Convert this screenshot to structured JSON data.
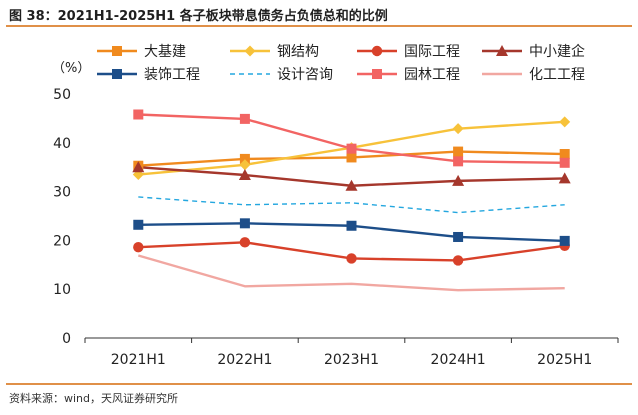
{
  "header": {
    "title": "图 38：2021H1-2025H1 各子板块带息债务占负债总和的比例"
  },
  "footer": {
    "source": "资料来源：wind，天风证券研究所"
  },
  "chart_data": {
    "type": "line",
    "ylabel": "（%）",
    "ylim": [
      0,
      50
    ],
    "yticks": [
      0,
      10,
      20,
      30,
      40,
      50
    ],
    "categories": [
      "2021H1",
      "2022H1",
      "2023H1",
      "2024H1",
      "2025H1"
    ],
    "legend_position": "top",
    "grid": false,
    "series": [
      {
        "name": "大基建",
        "values": [
          35.3,
          36.7,
          37.0,
          38.2,
          37.7
        ],
        "color": "#f08a1e",
        "marker": "square",
        "dash": false
      },
      {
        "name": "钢结构",
        "values": [
          33.5,
          35.5,
          39.0,
          42.9,
          44.3
        ],
        "color": "#f7c23a",
        "marker": "diamond",
        "dash": false
      },
      {
        "name": "国际工程",
        "values": [
          18.6,
          19.6,
          16.3,
          15.9,
          18.9
        ],
        "color": "#d8412a",
        "marker": "circle",
        "dash": false
      },
      {
        "name": "中小建企",
        "values": [
          35.0,
          33.4,
          31.2,
          32.2,
          32.7
        ],
        "color": "#a5372c",
        "marker": "triangle",
        "dash": false
      },
      {
        "name": "装饰工程",
        "values": [
          23.2,
          23.5,
          23.0,
          20.7,
          19.9
        ],
        "color": "#1d4e89",
        "marker": "square",
        "dash": false
      },
      {
        "name": "设计咨询",
        "values": [
          28.9,
          27.3,
          27.7,
          25.7,
          27.3
        ],
        "color": "#24a7df",
        "marker": "none",
        "dash": true
      },
      {
        "name": "园林工程",
        "values": [
          45.8,
          44.9,
          38.8,
          36.2,
          35.9
        ],
        "color": "#f26463",
        "marker": "square",
        "dash": false
      },
      {
        "name": "化工工程",
        "values": [
          16.9,
          10.6,
          11.1,
          9.8,
          10.2
        ],
        "color": "#f1a7a1",
        "marker": "none",
        "dash": false
      }
    ]
  }
}
